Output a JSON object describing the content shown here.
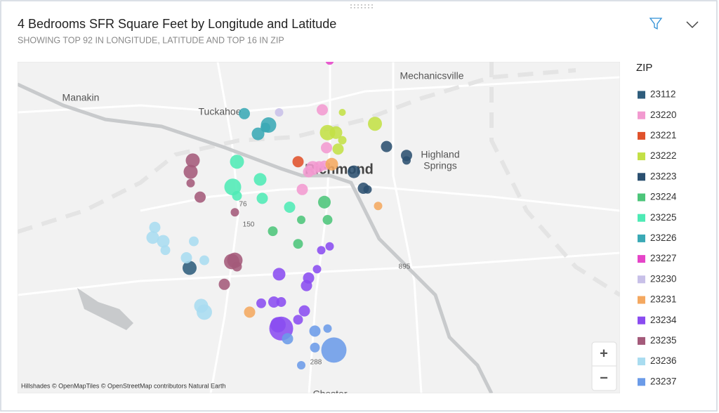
{
  "chart_data": {
    "type": "bubble-map",
    "title": "4 Bedrooms SFR Square Feet by Longitude and Latitude",
    "subtitle": "SHOWING TOP 92 IN LONGITUDE, LATITUDE AND TOP 16 IN ZIP",
    "legend_title": "ZIP",
    "places": [
      "Mechanicsville",
      "Manakin",
      "Tuckahoe",
      "Highland",
      "Springs",
      "Richmond",
      "Chester",
      "76",
      "150",
      "895",
      "288"
    ],
    "attribution": "Hillshades © OpenMapTiles © OpenStreetMap contributors Natural Earth",
    "zoom_in": "+",
    "zoom_out": "−",
    "series": [
      {
        "name": "23112",
        "color": "#2f5d7c",
        "lon": [
          -77.582
        ],
        "lat": [
          37.462
        ],
        "values": [
          6400
        ]
      },
      {
        "name": "23220",
        "color": "#f29ad0",
        "lon": [
          -77.456,
          -77.452,
          -77.465,
          -77.459,
          -77.469,
          -77.475,
          -77.454
        ],
        "lat": [
          37.587,
          37.557,
          37.541,
          37.542,
          37.538,
          37.524,
          37.543
        ],
        "values": [
          4100,
          4100,
          6400,
          4100,
          4100,
          4100,
          3100
        ]
      },
      {
        "name": "23221",
        "color": "#e0522b",
        "lon": [
          -77.479
        ],
        "lat": [
          37.546
        ],
        "values": [
          4100
        ]
      },
      {
        "name": "23222",
        "color": "#c3e046",
        "lon": [
          -77.437,
          -77.406,
          -77.451,
          -77.443,
          -77.441,
          -77.437
        ],
        "lat": [
          37.585,
          37.576,
          37.569,
          37.569,
          37.556,
          37.563
        ],
        "values": [
          1600,
          6400,
          7700,
          5200,
          4100,
          2300
        ]
      },
      {
        "name": "23223",
        "color": "#2b5070",
        "lon": [
          -77.395,
          -77.376,
          -77.376,
          -77.426,
          -77.417,
          -77.413
        ],
        "lat": [
          37.558,
          37.551,
          37.547,
          37.538,
          37.525,
          37.524
        ],
        "values": [
          4100,
          4100,
          2300,
          5200,
          4100,
          2300
        ]
      },
      {
        "name": "23224",
        "color": "#4cc57a",
        "lon": [
          -77.454,
          -77.476,
          -77.451,
          -77.503,
          -77.479
        ],
        "lat": [
          37.514,
          37.5,
          37.5,
          37.491,
          37.481
        ],
        "values": [
          5200,
          2300,
          3100,
          3100,
          3100
        ]
      },
      {
        "name": "23225",
        "color": "#4eeab5",
        "lon": [
          -77.537,
          -77.515,
          -77.541,
          -77.537,
          -77.513,
          -77.487
        ],
        "lat": [
          37.546,
          37.532,
          37.526,
          37.519,
          37.517,
          37.51
        ],
        "values": [
          6400,
          5200,
          9200,
          3100,
          4100,
          4100
        ]
      },
      {
        "name": "23226",
        "color": "#3aa9b5",
        "lon": [
          -77.53,
          -77.517,
          -77.507,
          -77.51
        ],
        "lat": [
          37.584,
          37.568,
          37.575,
          37.573
        ],
        "values": [
          4100,
          5200,
          7700,
          3100
        ]
      },
      {
        "name": "23227",
        "color": "#e545c8",
        "lon": [
          -77.449
        ],
        "lat": [
          37.626
        ],
        "values": [
          2300
        ]
      },
      {
        "name": "23230",
        "color": "#c8c0e8",
        "lon": [
          -77.497
        ],
        "lat": [
          37.585
        ],
        "values": [
          2300
        ]
      },
      {
        "name": "23231",
        "color": "#f4a860",
        "lon": [
          -77.447,
          -77.403,
          -77.525
        ],
        "lat": [
          37.544,
          37.511,
          37.427
        ],
        "values": [
          5200,
          2300,
          4100
        ]
      },
      {
        "name": "23234",
        "color": "#8a4cf0",
        "lon": [
          -77.457,
          -77.449,
          -77.497,
          -77.461,
          -77.469,
          -77.471,
          -77.514,
          -77.502,
          -77.495,
          -77.473,
          -77.479,
          -77.495,
          -77.498
        ],
        "lat": [
          37.476,
          37.479,
          37.457,
          37.461,
          37.454,
          37.448,
          37.434,
          37.435,
          37.435,
          37.428,
          37.421,
          37.414,
          37.417
        ],
        "values": [
          2300,
          2300,
          5200,
          2300,
          4100,
          4100,
          3100,
          4100,
          3100,
          4100,
          3100,
          18500,
          7700
        ]
      },
      {
        "name": "23235",
        "color": "#a45a7a",
        "lon": [
          -77.579,
          -77.581,
          -77.581,
          -77.572,
          -77.539,
          -77.542,
          -77.539,
          -77.537,
          -77.549
        ],
        "lat": [
          37.547,
          37.538,
          37.529,
          37.518,
          37.506,
          37.467,
          37.468,
          37.463,
          37.449
        ],
        "values": [
          6400,
          6400,
          2300,
          4100,
          2300,
          7700,
          7700,
          3100,
          4100
        ]
      },
      {
        "name": "23236",
        "color": "#a9dcf0",
        "lon": [
          -77.615,
          -77.617,
          -77.607,
          -77.605,
          -77.578,
          -77.585,
          -77.568,
          -77.571,
          -77.568
        ],
        "lat": [
          37.494,
          37.486,
          37.483,
          37.476,
          37.483,
          37.47,
          37.468,
          37.432,
          37.427
        ],
        "values": [
          4100,
          5200,
          5200,
          3100,
          3100,
          4100,
          3100,
          6400,
          7700
        ]
      },
      {
        "name": "23237",
        "color": "#6b9be8",
        "lon": [
          -77.451,
          -77.463,
          -77.489,
          -77.463,
          -77.445,
          -77.476
        ],
        "lat": [
          37.414,
          37.412,
          37.406,
          37.399,
          37.397,
          37.385
        ],
        "values": [
          2300,
          4100,
          4100,
          3100,
          20700,
          2300
        ]
      }
    ]
  }
}
